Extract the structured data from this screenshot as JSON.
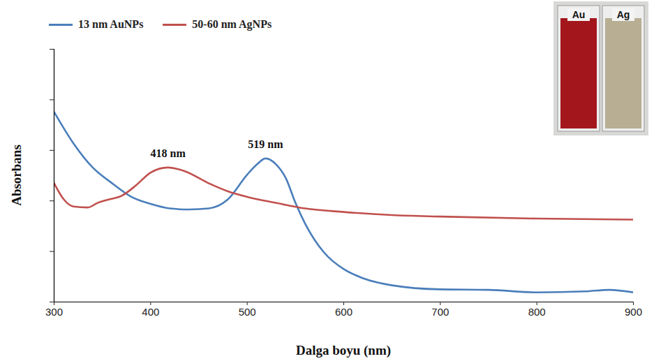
{
  "chart_data": {
    "type": "line",
    "x_label": "Dalga boyu (nm)",
    "y_label": "Absorbans",
    "xlim": [
      300,
      900
    ],
    "xticks": [
      300,
      400,
      500,
      600,
      700,
      800,
      900
    ],
    "ylim": [
      0,
      5
    ],
    "yticks": [
      0,
      1,
      2,
      3,
      4,
      5
    ],
    "tick_labels": "x",
    "grid": false,
    "legend": "top-left",
    "series": [
      {
        "name": "13 nm AuNPs",
        "color": "#4a7ebb",
        "x": [
          300,
          320,
          340,
          360,
          380,
          400,
          420,
          440,
          460,
          480,
          500,
          510,
          519,
          530,
          540,
          550,
          560,
          580,
          600,
          620,
          650,
          700,
          750,
          800,
          850,
          875,
          900
        ],
        "values": [
          3.76,
          3.14,
          2.66,
          2.35,
          2.08,
          1.94,
          1.85,
          1.83,
          1.85,
          2.03,
          2.52,
          2.72,
          2.84,
          2.72,
          2.45,
          1.96,
          1.55,
          0.97,
          0.65,
          0.47,
          0.33,
          0.25,
          0.24,
          0.19,
          0.21,
          0.24,
          0.19
        ]
      },
      {
        "name": "50-60 nm AgNPs",
        "color": "#c0504d",
        "x": [
          300,
          310,
          320,
          335,
          345,
          355,
          370,
          385,
          400,
          418,
          435,
          460,
          480,
          500,
          530,
          560,
          600,
          650,
          700,
          800,
          900
        ],
        "values": [
          2.35,
          2.03,
          1.89,
          1.87,
          1.96,
          2.02,
          2.1,
          2.31,
          2.56,
          2.66,
          2.59,
          2.35,
          2.19,
          2.08,
          1.96,
          1.85,
          1.78,
          1.72,
          1.69,
          1.65,
          1.63
        ]
      }
    ],
    "annotations": [
      {
        "text": "418 nm",
        "x": 418,
        "y": 2.66
      },
      {
        "text": "519 nm",
        "x": 519,
        "y": 2.84
      }
    ],
    "inset_labels": [
      "Au",
      "Ag"
    ]
  }
}
